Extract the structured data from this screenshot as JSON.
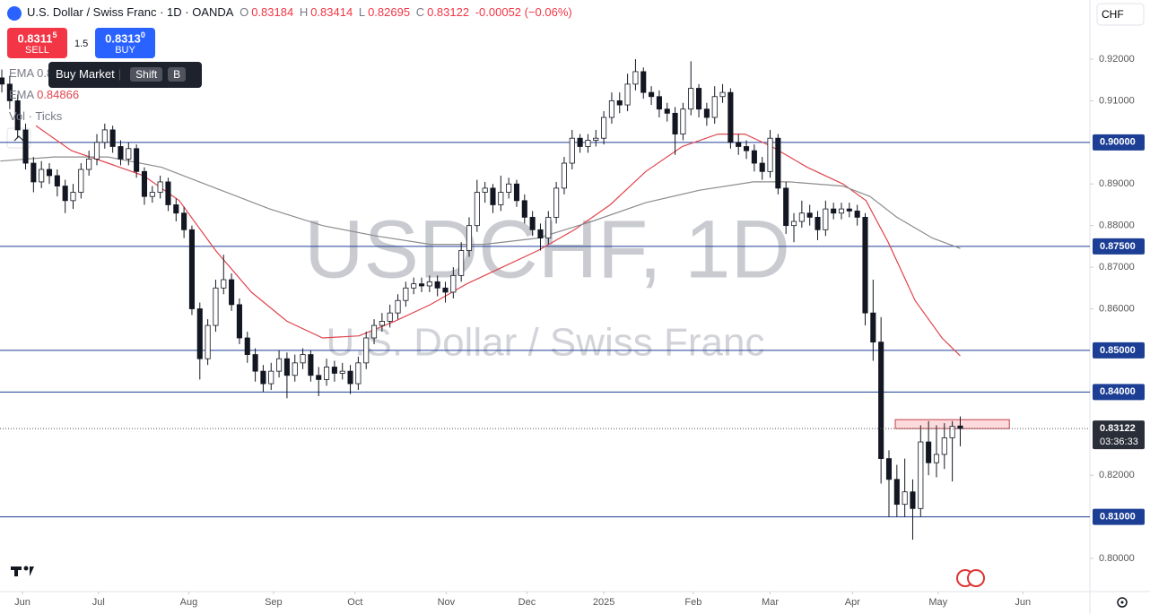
{
  "header": {
    "symbol": "U.S. Dollar / Swiss Franc · 1D · OANDA",
    "o": "O",
    "h": "H",
    "l": "L",
    "c": "C",
    "change": "-0.00052 (−0.06%)",
    "currency": "CHF"
  },
  "trade": {
    "sell_price": "0.8311",
    "sell_sup": "5",
    "sell": "SELL",
    "spread": "1.5",
    "buy_price": "0.8313",
    "buy_sup": "0",
    "buy": "BUY"
  },
  "tooltip": {
    "text": "Buy Market",
    "shift": "Shift",
    "key": "B"
  },
  "indicators": {
    "ema1": "EMA",
    "ema1_value": "0.8",
    "vol": "Vol · Ticks"
  },
  "watermark": {
    "symbol": "USDCHF, 1D",
    "name": "U.S. Dollar / Swiss Franc"
  },
  "chart_data": {
    "type": "candlestick",
    "up_color": "#ffffff",
    "down_color": "#131722",
    "grid": false,
    "ohlc": [
      [
        0.9155,
        0.9175,
        0.912,
        0.914
      ],
      [
        0.914,
        0.916,
        0.908,
        0.91
      ],
      [
        0.91,
        0.9115,
        0.901,
        0.903
      ],
      [
        0.903,
        0.9045,
        0.8935,
        0.895
      ],
      [
        0.895,
        0.8965,
        0.888,
        0.8905
      ],
      [
        0.8905,
        0.8955,
        0.889,
        0.8935
      ],
      [
        0.8935,
        0.895,
        0.89,
        0.892
      ],
      [
        0.892,
        0.8935,
        0.887,
        0.8895
      ],
      [
        0.8895,
        0.891,
        0.883,
        0.886
      ],
      [
        0.886,
        0.89,
        0.884,
        0.888
      ],
      [
        0.888,
        0.895,
        0.8865,
        0.8935
      ],
      [
        0.8935,
        0.898,
        0.892,
        0.896
      ],
      [
        0.896,
        0.902,
        0.8945,
        0.9
      ],
      [
        0.9,
        0.9045,
        0.8985,
        0.903
      ],
      [
        0.903,
        0.904,
        0.8975,
        0.899
      ],
      [
        0.899,
        0.9005,
        0.8945,
        0.896
      ],
      [
        0.896,
        0.9,
        0.8945,
        0.8985
      ],
      [
        0.8985,
        0.8995,
        0.8915,
        0.893
      ],
      [
        0.893,
        0.894,
        0.885,
        0.887
      ],
      [
        0.887,
        0.8895,
        0.8855,
        0.888
      ],
      [
        0.888,
        0.892,
        0.8865,
        0.8905
      ],
      [
        0.8905,
        0.8915,
        0.8835,
        0.885
      ],
      [
        0.885,
        0.8865,
        0.881,
        0.883
      ],
      [
        0.883,
        0.8845,
        0.877,
        0.879
      ],
      [
        0.879,
        0.88,
        0.8585,
        0.86
      ],
      [
        0.86,
        0.8615,
        0.843,
        0.848
      ],
      [
        0.848,
        0.8575,
        0.8465,
        0.856
      ],
      [
        0.856,
        0.867,
        0.8545,
        0.865
      ],
      [
        0.865,
        0.873,
        0.8635,
        0.867
      ],
      [
        0.867,
        0.8685,
        0.8595,
        0.861
      ],
      [
        0.861,
        0.8625,
        0.8515,
        0.853
      ],
      [
        0.853,
        0.8545,
        0.847,
        0.849
      ],
      [
        0.849,
        0.8505,
        0.8425,
        0.845
      ],
      [
        0.845,
        0.8465,
        0.84,
        0.842
      ],
      [
        0.842,
        0.847,
        0.8405,
        0.845
      ],
      [
        0.845,
        0.85,
        0.8435,
        0.848
      ],
      [
        0.848,
        0.8495,
        0.8385,
        0.844
      ],
      [
        0.844,
        0.849,
        0.8425,
        0.847
      ],
      [
        0.847,
        0.8505,
        0.8455,
        0.849
      ],
      [
        0.849,
        0.85,
        0.8425,
        0.844
      ],
      [
        0.844,
        0.846,
        0.839,
        0.843
      ],
      [
        0.843,
        0.848,
        0.8415,
        0.846
      ],
      [
        0.846,
        0.8475,
        0.8425,
        0.8445
      ],
      [
        0.8445,
        0.847,
        0.843,
        0.845
      ],
      [
        0.845,
        0.8465,
        0.8395,
        0.842
      ],
      [
        0.842,
        0.8485,
        0.8405,
        0.847
      ],
      [
        0.847,
        0.8545,
        0.8455,
        0.853
      ],
      [
        0.853,
        0.8575,
        0.8515,
        0.856
      ],
      [
        0.856,
        0.859,
        0.8545,
        0.857
      ],
      [
        0.857,
        0.861,
        0.8555,
        0.859
      ],
      [
        0.859,
        0.8635,
        0.8575,
        0.862
      ],
      [
        0.862,
        0.8665,
        0.8605,
        0.865
      ],
      [
        0.865,
        0.8675,
        0.8635,
        0.866
      ],
      [
        0.866,
        0.8675,
        0.864,
        0.8655
      ],
      [
        0.8655,
        0.868,
        0.864,
        0.8665
      ],
      [
        0.8665,
        0.868,
        0.863,
        0.865
      ],
      [
        0.865,
        0.8665,
        0.8615,
        0.864
      ],
      [
        0.864,
        0.87,
        0.8625,
        0.868
      ],
      [
        0.868,
        0.876,
        0.8665,
        0.874
      ],
      [
        0.874,
        0.882,
        0.8725,
        0.88
      ],
      [
        0.88,
        0.891,
        0.8785,
        0.888
      ],
      [
        0.888,
        0.8905,
        0.8855,
        0.889
      ],
      [
        0.889,
        0.89,
        0.883,
        0.885
      ],
      [
        0.885,
        0.892,
        0.8835,
        0.888
      ],
      [
        0.888,
        0.8915,
        0.8865,
        0.89
      ],
      [
        0.89,
        0.891,
        0.8845,
        0.886
      ],
      [
        0.886,
        0.8875,
        0.8805,
        0.882
      ],
      [
        0.882,
        0.8835,
        0.8775,
        0.879
      ],
      [
        0.879,
        0.8805,
        0.874,
        0.877
      ],
      [
        0.877,
        0.8835,
        0.8755,
        0.882
      ],
      [
        0.882,
        0.8905,
        0.8805,
        0.889
      ],
      [
        0.889,
        0.8965,
        0.8875,
        0.895
      ],
      [
        0.895,
        0.903,
        0.8935,
        0.901
      ],
      [
        0.901,
        0.902,
        0.8975,
        0.899
      ],
      [
        0.899,
        0.902,
        0.8975,
        0.9005
      ],
      [
        0.9005,
        0.903,
        0.899,
        0.901
      ],
      [
        0.901,
        0.9075,
        0.8995,
        0.906
      ],
      [
        0.906,
        0.912,
        0.9045,
        0.91
      ],
      [
        0.91,
        0.912,
        0.907,
        0.909
      ],
      [
        0.909,
        0.9165,
        0.9075,
        0.914
      ],
      [
        0.914,
        0.92,
        0.9125,
        0.917
      ],
      [
        0.917,
        0.918,
        0.9105,
        0.912
      ],
      [
        0.912,
        0.9135,
        0.909,
        0.911
      ],
      [
        0.911,
        0.9125,
        0.906,
        0.908
      ],
      [
        0.908,
        0.9095,
        0.905,
        0.907
      ],
      [
        0.907,
        0.9085,
        0.897,
        0.902
      ],
      [
        0.902,
        0.9095,
        0.9005,
        0.908
      ],
      [
        0.908,
        0.9195,
        0.9065,
        0.913
      ],
      [
        0.913,
        0.914,
        0.906,
        0.908
      ],
      [
        0.908,
        0.9095,
        0.904,
        0.906
      ],
      [
        0.906,
        0.9135,
        0.9045,
        0.911
      ],
      [
        0.911,
        0.914,
        0.9095,
        0.912
      ],
      [
        0.912,
        0.913,
        0.8985,
        0.9
      ],
      [
        0.9,
        0.902,
        0.897,
        0.899
      ],
      [
        0.899,
        0.9005,
        0.896,
        0.898
      ],
      [
        0.898,
        0.8995,
        0.893,
        0.895
      ],
      [
        0.895,
        0.8965,
        0.891,
        0.893
      ],
      [
        0.893,
        0.903,
        0.8915,
        0.901
      ],
      [
        0.901,
        0.902,
        0.8875,
        0.889
      ],
      [
        0.889,
        0.8905,
        0.878,
        0.88
      ],
      [
        0.88,
        0.883,
        0.876,
        0.881
      ],
      [
        0.881,
        0.886,
        0.8795,
        0.883
      ],
      [
        0.883,
        0.885,
        0.88,
        0.882
      ],
      [
        0.882,
        0.8835,
        0.8765,
        0.879
      ],
      [
        0.879,
        0.886,
        0.8775,
        0.884
      ],
      [
        0.884,
        0.8855,
        0.8815,
        0.883
      ],
      [
        0.883,
        0.8855,
        0.8815,
        0.884
      ],
      [
        0.884,
        0.8855,
        0.882,
        0.8835
      ],
      [
        0.8835,
        0.885,
        0.88,
        0.882
      ],
      [
        0.882,
        0.883,
        0.856,
        0.859
      ],
      [
        0.859,
        0.867,
        0.8475,
        0.852
      ],
      [
        0.852,
        0.858,
        0.818,
        0.824
      ],
      [
        0.824,
        0.826,
        0.81,
        0.819
      ],
      [
        0.819,
        0.8225,
        0.81,
        0.813
      ],
      [
        0.813,
        0.824,
        0.81,
        0.816
      ],
      [
        0.816,
        0.819,
        0.8045,
        0.812
      ],
      [
        0.812,
        0.832,
        0.81,
        0.828
      ],
      [
        0.828,
        0.833,
        0.82,
        0.823
      ],
      [
        0.823,
        0.832,
        0.8195,
        0.825
      ],
      [
        0.825,
        0.8325,
        0.8215,
        0.829
      ],
      [
        0.829,
        0.833,
        0.8185,
        0.83174
      ],
      [
        0.83184,
        0.83414,
        0.82695,
        0.83122
      ]
    ],
    "series": [
      {
        "name": "EMA",
        "color": "#e0454d",
        "x": [
          4.3,
          8.8,
          13.4,
          17.9,
          22.4,
          27,
          31.5,
          36,
          40.5,
          45.1,
          49.6,
          54.1,
          58.7,
          63.2,
          67.7,
          72.3,
          76.8,
          81.3,
          85.9,
          90.4,
          93.8,
          97.2,
          101.7,
          106.2,
          109.1,
          111.9,
          115.3,
          118.7,
          121
        ],
        "values": [
          0.904,
          0.898,
          0.895,
          0.892,
          0.886,
          0.874,
          0.864,
          0.857,
          0.853,
          0.8535,
          0.857,
          0.861,
          0.866,
          0.87,
          0.874,
          0.879,
          0.885,
          0.893,
          0.899,
          0.902,
          0.902,
          0.899,
          0.894,
          0.89,
          0.886,
          0.876,
          0.862,
          0.853,
          0.84866
        ]
      },
      {
        "name": "EMA",
        "color": "#8c8c8c",
        "x": [
          -0.2,
          6.6,
          13.4,
          20.2,
          27,
          33.8,
          40.5,
          47.3,
          54.1,
          60.9,
          67.7,
          74.5,
          81.3,
          88.1,
          94.9,
          99.4,
          106.2,
          109.6,
          113,
          117.5,
          121
        ],
        "values": [
          0.8955,
          0.8965,
          0.8965,
          0.894,
          0.889,
          0.884,
          0.88,
          0.8775,
          0.8755,
          0.8755,
          0.877,
          0.881,
          0.8855,
          0.8885,
          0.8905,
          0.8905,
          0.8895,
          0.887,
          0.882,
          0.877,
          0.8745
        ]
      }
    ],
    "levels": [
      {
        "value": 0.9,
        "label": "0.90000"
      },
      {
        "value": 0.875,
        "label": "0.87500"
      },
      {
        "value": 0.85,
        "label": "0.85000"
      },
      {
        "value": 0.84,
        "label": "0.84000"
      },
      {
        "value": 0.81,
        "label": "0.81000"
      }
    ],
    "level_color": "#1c3f95",
    "last": 0.83122,
    "countdown": "03:36:33",
    "zone": {
      "xlim": [
        112.8,
        127.2
      ],
      "ylim": [
        0.83121,
        0.83336
      ]
    },
    "xlim": [
      -0.23,
      137.37
    ],
    "xticks": [
      {
        "value": 2.6,
        "label": "Jun"
      },
      {
        "value": 12.2,
        "label": "Jul"
      },
      {
        "value": 23.6,
        "label": "Aug"
      },
      {
        "value": 34.3,
        "label": "Sep"
      },
      {
        "value": 44.6,
        "label": "Oct"
      },
      {
        "value": 56.1,
        "label": "Nov"
      },
      {
        "value": 66.3,
        "label": "Dec"
      },
      {
        "value": 76,
        "label": "2025"
      },
      {
        "value": 87.3,
        "label": "Feb"
      },
      {
        "value": 97,
        "label": "Mar"
      },
      {
        "value": 107.4,
        "label": "Apr"
      },
      {
        "value": 118.2,
        "label": "May"
      },
      {
        "value": 128.9,
        "label": "Jun"
      }
    ],
    "ylim": [
      0.79203,
      0.93422
    ],
    "yticks": [
      {
        "value": 0.92,
        "label": "0.92000"
      },
      {
        "value": 0.91,
        "label": "0.91000"
      },
      {
        "value": 0.89,
        "label": "0.89000"
      },
      {
        "value": 0.88,
        "label": "0.88000"
      },
      {
        "value": 0.87,
        "label": "0.87000"
      },
      {
        "value": 0.86,
        "label": "0.86000"
      },
      {
        "value": 0.82,
        "label": "0.82000"
      },
      {
        "value": 0.8,
        "label": "0.80000"
      }
    ]
  }
}
